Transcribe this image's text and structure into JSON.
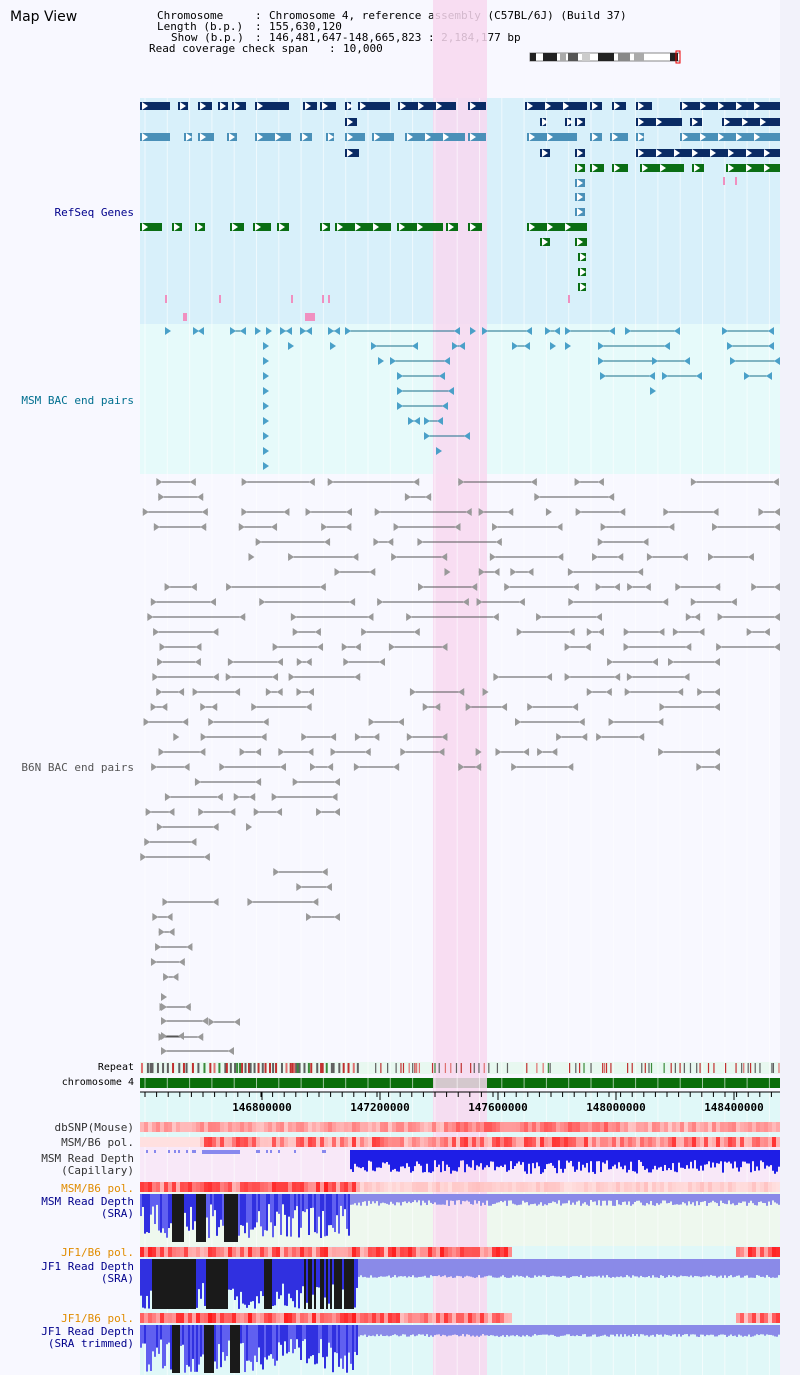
{
  "page_title": "Map View",
  "header": {
    "chromosome_label": "Chromosome",
    "chromosome_value": "Chromosome 4, reference assembly (C57BL/6J) (Build 37)",
    "length_label": "Length (b.p.)",
    "length_value": "155,630,120",
    "show_label": "Show (b.p.)",
    "show_value": "146,481,647-148,665,823 : 2,184,177 bp",
    "coverage_label": "Read coverage check span",
    "coverage_value": "10,000"
  },
  "tracks": {
    "refseq": "RefSeq Genes",
    "msm_bac": "MSM BAC end pairs",
    "b6n_bac": "B6N BAC end pairs",
    "repeat": "Repeat",
    "chromosome": "chromosome 4",
    "dbsnp": "dbSNP(Mouse)",
    "msm_b6_pol": "MSM/B6 pol.",
    "msm_depth_cap_1": "MSM Read Depth",
    "msm_depth_cap_2": "(Capillary)",
    "msm_b6_pol2": "MSM/B6 pol.",
    "msm_depth_sra_1": "MSM Read Depth",
    "msm_depth_sra_2": "(SRA)",
    "jf1_b6_pol": "JF1/B6 pol.",
    "jf1_depth_sra_1": "JF1 Read Depth",
    "jf1_depth_sra_2": "(SRA)",
    "jf1_b6_pol2": "JF1/B6 pol.",
    "jf1_depth_trim_1": "JF1 Read Depth",
    "jf1_depth_trim_2": "(SRA trimmed)"
  },
  "axis_ticks": [
    "146800000",
    "147200000",
    "147600000",
    "148000000",
    "148400000"
  ],
  "colors": {
    "refseq_bg": "#d8f0fa",
    "msm_bg": "#e6fafa",
    "highlight": "#f8d8f0",
    "gene_dark": "#0a2b64",
    "gene_mid": "#4a90b8",
    "gene_green": "#0a6e14",
    "msm_line": "#1a6e8a",
    "b6n_line": "#555555",
    "chrom_bar": "#0a6e0a",
    "depth_blue": "#1e1ee6",
    "depth_black": "#1a1a1a",
    "label_navy": "#00008b",
    "label_teal": "#006f8f",
    "label_orange": "#e08c00"
  }
}
